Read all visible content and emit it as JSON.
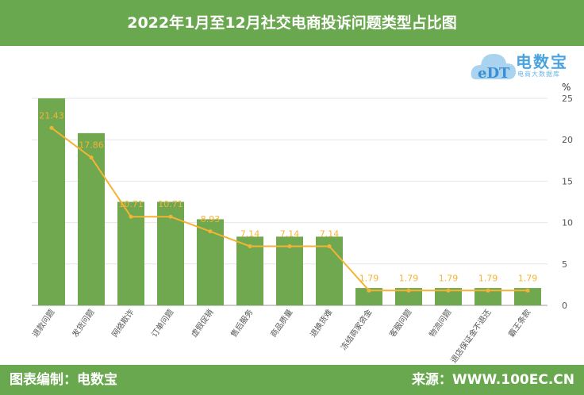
{
  "header": {
    "title": "2022年1月至12月社交电商投诉问题类型占比图"
  },
  "logo": {
    "name": "电数宝",
    "tagline": "电商大数据库",
    "mark": "eDT"
  },
  "footer": {
    "left": "图表编制：电数宝",
    "right": "来源：WWW.100EC.CN"
  },
  "colors": {
    "bar": "#70a84f",
    "line": "#f5b335",
    "header": "#6aa84f"
  },
  "chart_data": {
    "type": "bar+line",
    "unit": "%",
    "ylim": [
      0,
      25
    ],
    "yticks": [
      0,
      5,
      10,
      15,
      20,
      25
    ],
    "grid": true,
    "categories": [
      "退款问题",
      "发货问题",
      "网络欺诈",
      "订单问题",
      "虚假促销",
      "售后服务",
      "商品质量",
      "退换货难",
      "冻结商家资金",
      "客服问题",
      "物流问题",
      "退店保证金不退还",
      "霸王条款"
    ],
    "bar_values": [
      25,
      20.8,
      12.5,
      12.5,
      10.4,
      8.3,
      8.3,
      8.3,
      2.1,
      2.1,
      2.1,
      2.1,
      2.1
    ],
    "line_values": [
      21.43,
      17.86,
      10.71,
      10.71,
      8.93,
      7.14,
      7.14,
      7.14,
      1.79,
      1.79,
      1.79,
      1.79,
      1.79
    ]
  }
}
